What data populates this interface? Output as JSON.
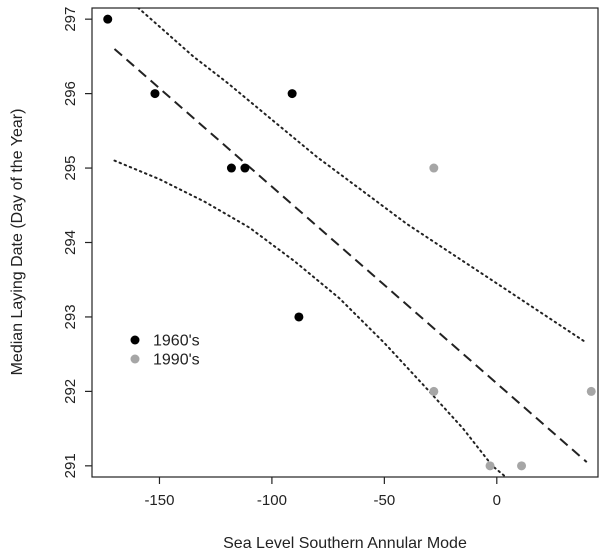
{
  "chart_data": {
    "type": "scatter",
    "xlabel": "Sea Level Southern Annular Mode",
    "ylabel": "Median Laying Date (Day of the Year)",
    "xlim": [
      -180,
      45
    ],
    "ylim": [
      290.85,
      297.15
    ],
    "x_ticks": [
      -150,
      -100,
      -50,
      0
    ],
    "y_ticks": [
      291,
      292,
      293,
      294,
      295,
      296,
      297
    ],
    "grid": false,
    "legend_position": "left",
    "series": [
      {
        "name": "1960's",
        "color": "#000000",
        "points": [
          {
            "x": -173,
            "y": 297
          },
          {
            "x": -152,
            "y": 296
          },
          {
            "x": -118,
            "y": 295
          },
          {
            "x": -112,
            "y": 295
          },
          {
            "x": -91,
            "y": 296
          },
          {
            "x": -88,
            "y": 293
          }
        ]
      },
      {
        "name": "1990's",
        "color": "#a6a6a6",
        "points": [
          {
            "x": -28,
            "y": 295
          },
          {
            "x": -28,
            "y": 292
          },
          {
            "x": -3,
            "y": 291
          },
          {
            "x": 11,
            "y": 291
          },
          {
            "x": 42,
            "y": 292
          }
        ]
      }
    ],
    "regression_line": {
      "style": "dashed",
      "points": [
        {
          "x": -170,
          "y": 296.6
        },
        {
          "x": 40,
          "y": 291.05
        }
      ]
    },
    "confidence_band": {
      "style": "dotted",
      "upper": [
        {
          "x": -165,
          "y": 297.3
        },
        {
          "x": -150,
          "y": 296.9
        },
        {
          "x": -135,
          "y": 296.5
        },
        {
          "x": -120,
          "y": 296.15
        },
        {
          "x": -100,
          "y": 295.65
        },
        {
          "x": -80,
          "y": 295.15
        },
        {
          "x": -60,
          "y": 294.7
        },
        {
          "x": -40,
          "y": 294.25
        },
        {
          "x": -20,
          "y": 293.85
        },
        {
          "x": 0,
          "y": 293.45
        },
        {
          "x": 20,
          "y": 293.05
        },
        {
          "x": 40,
          "y": 292.65
        }
      ],
      "lower": [
        {
          "x": -170,
          "y": 295.1
        },
        {
          "x": -150,
          "y": 294.85
        },
        {
          "x": -130,
          "y": 294.55
        },
        {
          "x": -110,
          "y": 294.2
        },
        {
          "x": -90,
          "y": 293.75
        },
        {
          "x": -70,
          "y": 293.25
        },
        {
          "x": -50,
          "y": 292.65
        },
        {
          "x": -30,
          "y": 292.0
        },
        {
          "x": -15,
          "y": 291.5
        },
        {
          "x": -2,
          "y": 291.0
        },
        {
          "x": 6,
          "y": 290.8
        }
      ]
    }
  }
}
